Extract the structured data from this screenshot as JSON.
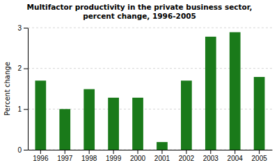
{
  "chart_data": {
    "type": "bar",
    "title": "Multifactor productivity in the private business sector,\npercent change, 1996-2005",
    "ylabel": "Percent change",
    "categories": [
      "1996",
      "1997",
      "1998",
      "1999",
      "2000",
      "2001",
      "2002",
      "2003",
      "2004",
      "2005"
    ],
    "values": [
      1.7,
      1.0,
      1.49,
      1.28,
      1.28,
      0.19,
      1.7,
      2.78,
      2.89,
      1.79
    ],
    "color": "#1a7a1a",
    "ylim": [
      0,
      3
    ],
    "yticks": [
      0,
      1,
      2,
      3
    ],
    "grid": true
  }
}
